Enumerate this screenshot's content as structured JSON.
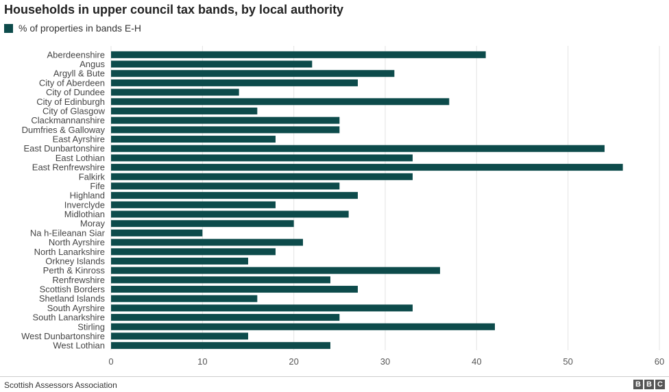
{
  "chart_data": {
    "type": "bar",
    "orientation": "horizontal",
    "title": "Households in upper council tax bands, by local authority",
    "categories": [
      "Aberdeenshire",
      "Angus",
      "Argyll & Bute",
      "City of Aberdeen",
      "City of Dundee",
      "City of Edinburgh",
      "City of Glasgow",
      "Clackmannanshire",
      "Dumfries & Galloway",
      "East Ayrshire",
      "East Dunbartonshire",
      "East Lothian",
      "East Renfrewshire",
      "Falkirk",
      "Fife",
      "Highland",
      "Inverclyde",
      "Midlothian",
      "Moray",
      "Na h-Eileanan Siar",
      "North Ayrshire",
      "North Lanarkshire",
      "Orkney Islands",
      "Perth & Kinross",
      "Renfrewshire",
      "Scottish Borders",
      "Shetland Islands",
      "South Ayrshire",
      "South Lanarkshire",
      "Stirling",
      "West Dunbartonshire",
      "West Lothian"
    ],
    "series": [
      {
        "name": "% of properties in bands E-H",
        "color": "#0d4b4b",
        "values": [
          41,
          22,
          31,
          27,
          14,
          37,
          16,
          25,
          25,
          18,
          54,
          33,
          56,
          33,
          25,
          27,
          18,
          26,
          20,
          10,
          21,
          18,
          15,
          36,
          24,
          27,
          16,
          33,
          25,
          42,
          15,
          24
        ]
      }
    ],
    "xlim": [
      0,
      60
    ],
    "xticks": [
      "0",
      "10",
      "20",
      "30",
      "40",
      "50",
      "60"
    ],
    "grid": true,
    "legend": "top-left"
  },
  "source": "Scottish Assessors Association",
  "logo": [
    "B",
    "B",
    "C"
  ]
}
